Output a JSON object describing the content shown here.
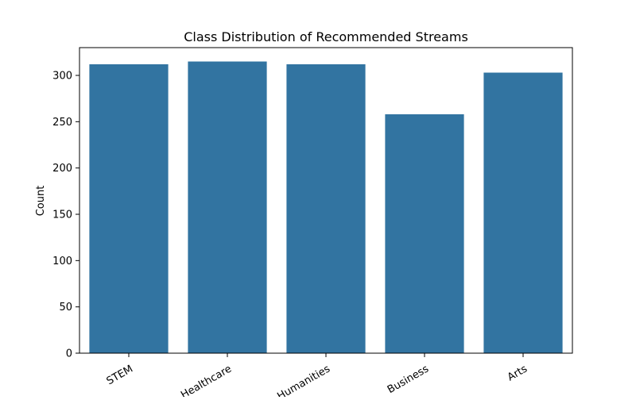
{
  "chart_data": {
    "type": "bar",
    "title": "Class Distribution of Recommended Streams",
    "xlabel": "",
    "ylabel": "Count",
    "categories": [
      "STEM",
      "Healthcare",
      "Humanities",
      "Business",
      "Arts"
    ],
    "values": [
      312,
      315,
      312,
      258,
      303
    ],
    "ylim": [
      0,
      330
    ],
    "yticks": [
      0,
      50,
      100,
      150,
      200,
      250,
      300
    ],
    "xtick_rotation_deg": 30,
    "grid": false,
    "legend": "none",
    "bar_color": "#3274a1"
  }
}
